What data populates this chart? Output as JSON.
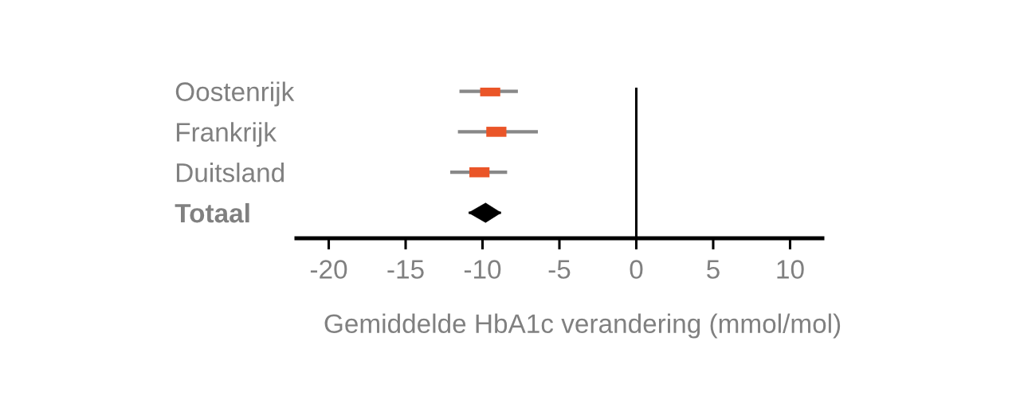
{
  "chart_data": {
    "type": "scatter",
    "orientation": "horizontal",
    "xlabel": "Gemiddelde HbA1c verandering (mmol/mol)",
    "categories": [
      "Oostenrijk",
      "Frankrijk",
      "Duitsland",
      "Totaal"
    ],
    "series": [
      {
        "color": "#ea5528",
        "marker": "square",
        "values": [
          -9.5,
          -9.1,
          -10.2,
          null
        ],
        "errors": [
          [
            -11.5,
            -7.7
          ],
          [
            -11.6,
            -6.4
          ],
          [
            -12.1,
            -8.4
          ],
          null
        ]
      },
      {
        "color": "#000000",
        "marker": "diamond",
        "values": [
          null,
          null,
          null,
          -9.8
        ],
        "errors": [
          null,
          null,
          null,
          [
            -10.9,
            -8.8
          ]
        ]
      }
    ],
    "xlim": [
      -22.1,
      12.1
    ],
    "xticks": [
      -20,
      -15,
      -10,
      -5,
      0,
      5,
      10
    ],
    "ref_lines": [
      {
        "axis": "x",
        "value": 0,
        "color": "#000000"
      }
    ],
    "grid": false,
    "legend": false
  }
}
